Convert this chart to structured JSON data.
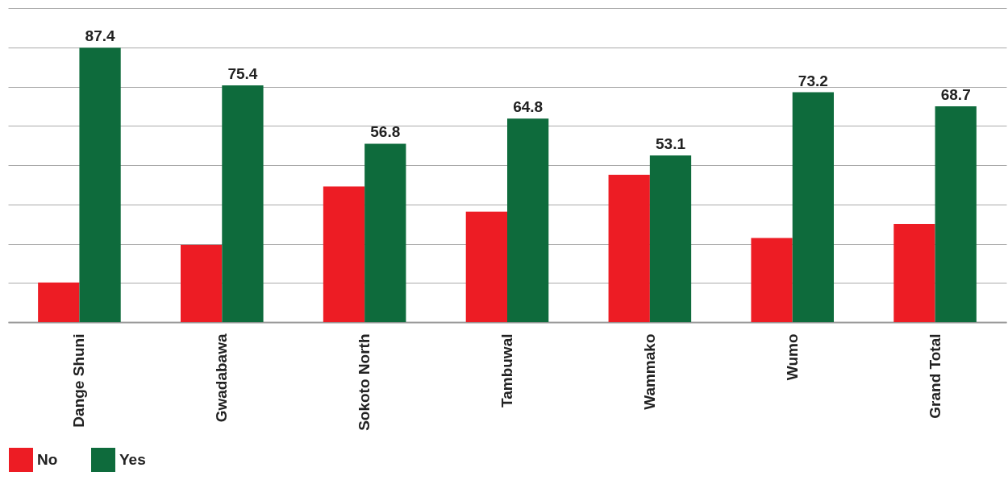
{
  "chart_data": {
    "type": "bar",
    "categories": [
      "Dange Shuni",
      "Gwadabawa",
      "Sokoto North",
      "Tambuwal",
      "Wammako",
      "Wumo",
      "Grand Total"
    ],
    "series": [
      {
        "name": "No",
        "color": "#ed1c24",
        "values": [
          12.6,
          24.6,
          43.2,
          35.2,
          46.9,
          26.8,
          31.3
        ]
      },
      {
        "name": "Yes",
        "color": "#0e6b3c",
        "values": [
          87.4,
          75.4,
          56.8,
          64.8,
          53.1,
          73.2,
          68.7
        ],
        "value_labels": [
          "87.4",
          "75.4",
          "56.8",
          "64.8",
          "53.1",
          "73.2",
          "68.7"
        ]
      }
    ],
    "ylim": [
      0,
      100
    ],
    "yticks": [
      {
        "value": 0,
        "label": null
      },
      {
        "value": 12.5,
        "label": null
      },
      {
        "value": 25,
        "label": null
      },
      {
        "value": 37.5,
        "label": null
      },
      {
        "value": 50,
        "label": null
      },
      {
        "value": 62.5,
        "label": null
      },
      {
        "value": 75,
        "label": null
      },
      {
        "value": 87.5,
        "label": null
      },
      {
        "value": 100,
        "label": null
      }
    ],
    "tick_labels": "x",
    "grid": "y",
    "legend": "bottom"
  }
}
